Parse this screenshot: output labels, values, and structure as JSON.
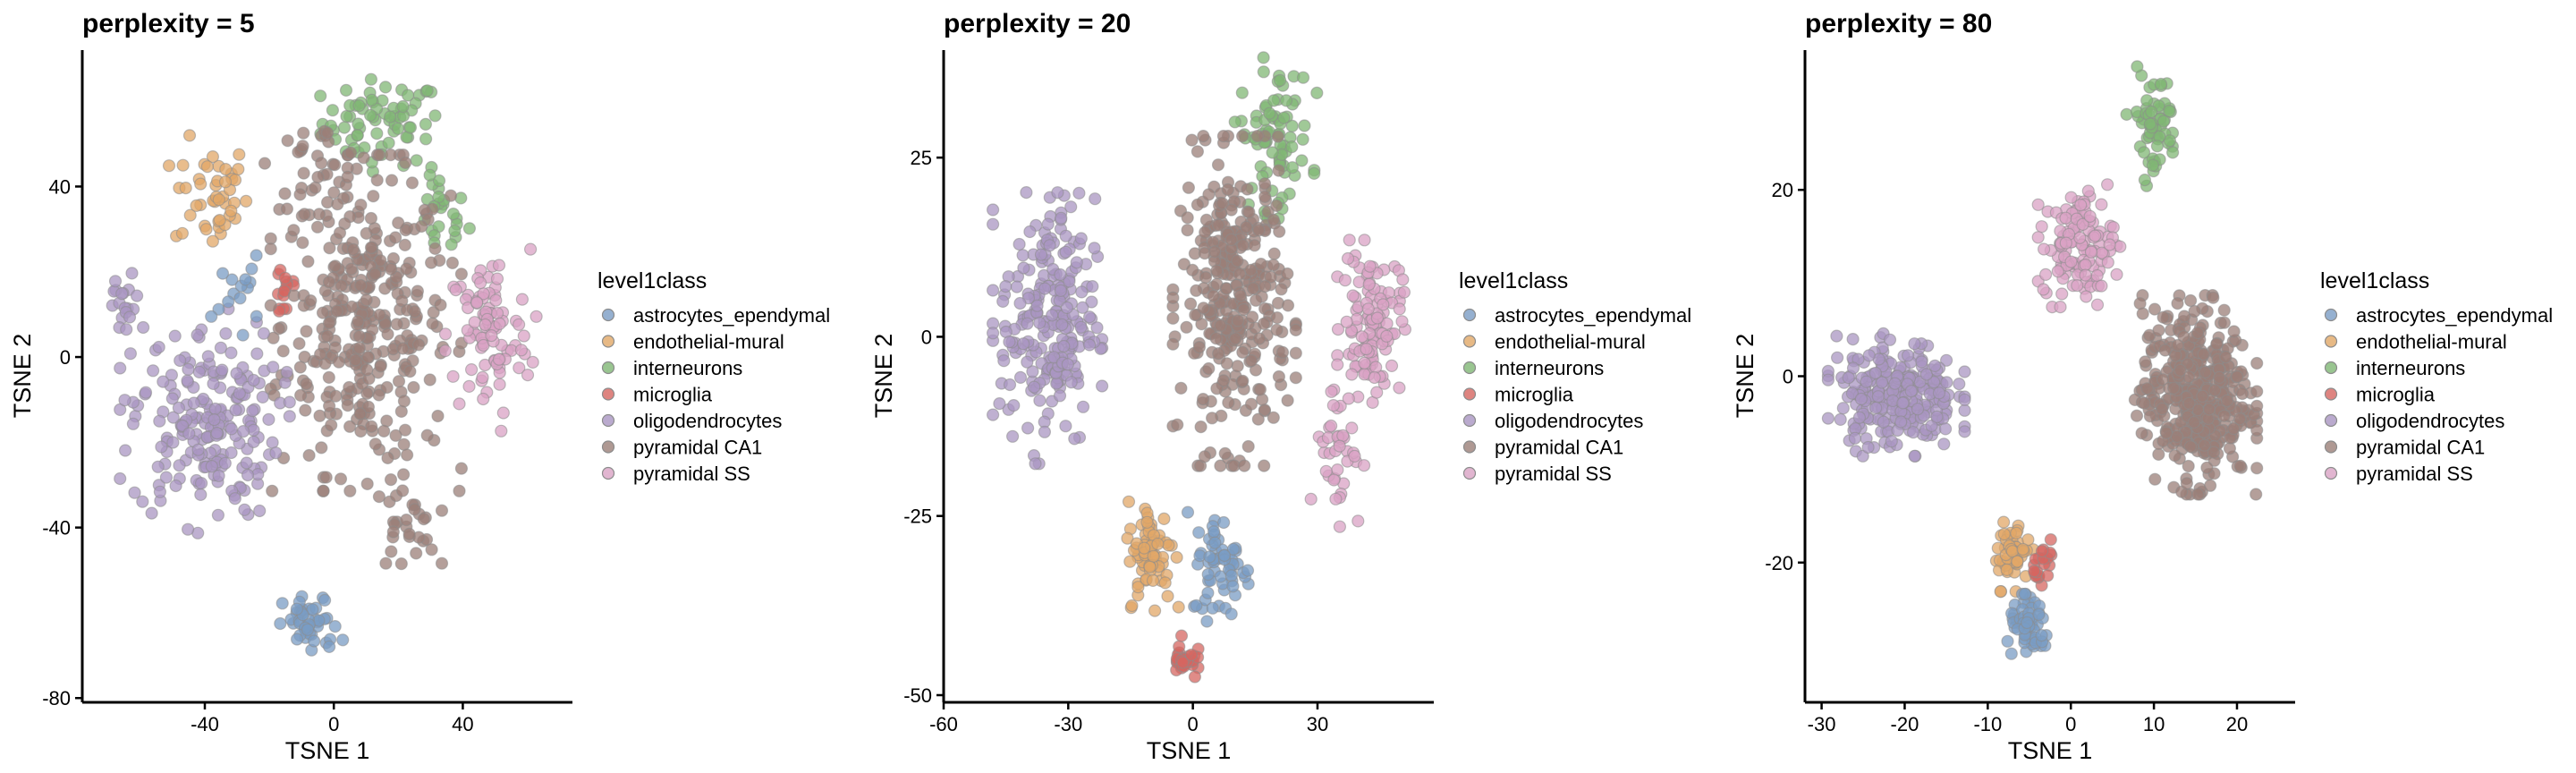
{
  "legend": {
    "title": "level1class",
    "items": [
      {
        "label": "astrocytes_ependymal",
        "color": "#7a9cc4"
      },
      {
        "label": "endothelial-mural",
        "color": "#e1a767"
      },
      {
        "label": "interneurons",
        "color": "#80b774"
      },
      {
        "label": "microglia",
        "color": "#d66560"
      },
      {
        "label": "oligodendrocytes",
        "color": "#a995c2"
      },
      {
        "label": "pyramidal CA1",
        "color": "#9b7f78"
      },
      {
        "label": "pyramidal SS",
        "color": "#d9a2c4"
      }
    ]
  },
  "chart_data": [
    {
      "type": "scatter",
      "title": "perplexity = 5",
      "xlabel": "TSNE 1",
      "ylabel": "TSNE 2",
      "xlim": [
        -78,
        74
      ],
      "ylim": [
        -81,
        72
      ],
      "xticks": [
        -40,
        0,
        40
      ],
      "yticks": [
        -80,
        -40,
        0,
        40
      ],
      "grid": false,
      "legend_position": "right",
      "clusters": [
        {
          "class": "interneurons",
          "center": [
            15,
            55
          ],
          "spread": [
            13,
            7
          ],
          "n": 70
        },
        {
          "class": "interneurons",
          "center": [
            33,
            33
          ],
          "spread": [
            6,
            7
          ],
          "n": 25
        },
        {
          "class": "endothelial-mural",
          "center": [
            -38,
            38
          ],
          "spread": [
            8,
            9
          ],
          "n": 45
        },
        {
          "class": "microglia",
          "center": [
            -15,
            16
          ],
          "spread": [
            3,
            6
          ],
          "n": 15
        },
        {
          "class": "pyramidal CA1",
          "center": [
            10,
            8
          ],
          "spread": [
            18,
            24
          ],
          "n": 340
        },
        {
          "class": "pyramidal CA1",
          "center": [
            -5,
            45
          ],
          "spread": [
            10,
            7
          ],
          "n": 35
        },
        {
          "class": "pyramidal CA1",
          "center": [
            22,
            -40
          ],
          "spread": [
            7,
            7
          ],
          "n": 30
        },
        {
          "class": "pyramidal SS",
          "center": [
            48,
            5
          ],
          "spread": [
            9,
            14
          ],
          "n": 90
        },
        {
          "class": "oligodendrocytes",
          "center": [
            -40,
            -15
          ],
          "spread": [
            16,
            16
          ],
          "n": 200
        },
        {
          "class": "oligodendrocytes",
          "center": [
            -65,
            12
          ],
          "spread": [
            4,
            5
          ],
          "n": 18
        },
        {
          "class": "astrocytes_ependymal",
          "center": [
            -7,
            -63
          ],
          "spread": [
            6,
            5
          ],
          "n": 45
        },
        {
          "class": "astrocytes_ependymal",
          "center": [
            -30,
            15
          ],
          "spread": [
            5,
            6
          ],
          "n": 15
        }
      ]
    },
    {
      "type": "scatter",
      "title": "perplexity = 20",
      "xlabel": "TSNE 1",
      "ylabel": "TSNE 2",
      "xlim": [
        -60,
        58
      ],
      "ylim": [
        -51,
        40
      ],
      "xticks": [
        -60,
        -30,
        0,
        30
      ],
      "yticks": [
        -50,
        -25,
        0,
        25
      ],
      "grid": false,
      "legend_position": "right",
      "clusters": [
        {
          "class": "interneurons",
          "center": [
            20,
            28
          ],
          "spread": [
            6,
            7
          ],
          "n": 80
        },
        {
          "class": "pyramidal CA1",
          "center": [
            10,
            5
          ],
          "spread": [
            9,
            14
          ],
          "n": 330
        },
        {
          "class": "pyramidal SS",
          "center": [
            43,
            2
          ],
          "spread": [
            5,
            7
          ],
          "n": 110
        },
        {
          "class": "pyramidal SS",
          "center": [
            35,
            -15
          ],
          "spread": [
            4,
            7
          ],
          "n": 40
        },
        {
          "class": "oligodendrocytes",
          "center": [
            -35,
            2
          ],
          "spread": [
            8,
            12
          ],
          "n": 230
        },
        {
          "class": "endothelial-mural",
          "center": [
            -10,
            -30
          ],
          "spread": [
            4,
            5
          ],
          "n": 70
        },
        {
          "class": "astrocytes_ependymal",
          "center": [
            7,
            -32
          ],
          "spread": [
            5,
            5
          ],
          "n": 60
        },
        {
          "class": "microglia",
          "center": [
            -2,
            -45
          ],
          "spread": [
            2,
            2
          ],
          "n": 30
        }
      ]
    },
    {
      "type": "scatter",
      "title": "perplexity = 80",
      "xlabel": "TSNE 1",
      "ylabel": "TSNE 2",
      "xlim": [
        -32,
        27
      ],
      "ylim": [
        -35,
        35
      ],
      "xticks": [
        -30,
        -20,
        -10,
        0,
        10,
        20
      ],
      "yticks": [
        -20,
        0,
        20
      ],
      "grid": false,
      "legend_position": "right",
      "clusters": [
        {
          "class": "interneurons",
          "center": [
            10,
            27
          ],
          "spread": [
            2,
            4
          ],
          "n": 60
        },
        {
          "class": "pyramidal SS",
          "center": [
            1,
            14
          ],
          "spread": [
            3,
            4
          ],
          "n": 120
        },
        {
          "class": "pyramidal CA1",
          "center": [
            15,
            -2
          ],
          "spread": [
            4.5,
            6.5
          ],
          "n": 420
        },
        {
          "class": "oligodendrocytes",
          "center": [
            -21,
            -2
          ],
          "spread": [
            5,
            4
          ],
          "n": 260
        },
        {
          "class": "endothelial-mural",
          "center": [
            -7,
            -19
          ],
          "spread": [
            1.5,
            2.5
          ],
          "n": 50
        },
        {
          "class": "microglia",
          "center": [
            -3,
            -20
          ],
          "spread": [
            1,
            1.5
          ],
          "n": 20
        },
        {
          "class": "astrocytes_ependymal",
          "center": [
            -5,
            -27
          ],
          "spread": [
            1.8,
            2.2
          ],
          "n": 60
        }
      ]
    }
  ]
}
